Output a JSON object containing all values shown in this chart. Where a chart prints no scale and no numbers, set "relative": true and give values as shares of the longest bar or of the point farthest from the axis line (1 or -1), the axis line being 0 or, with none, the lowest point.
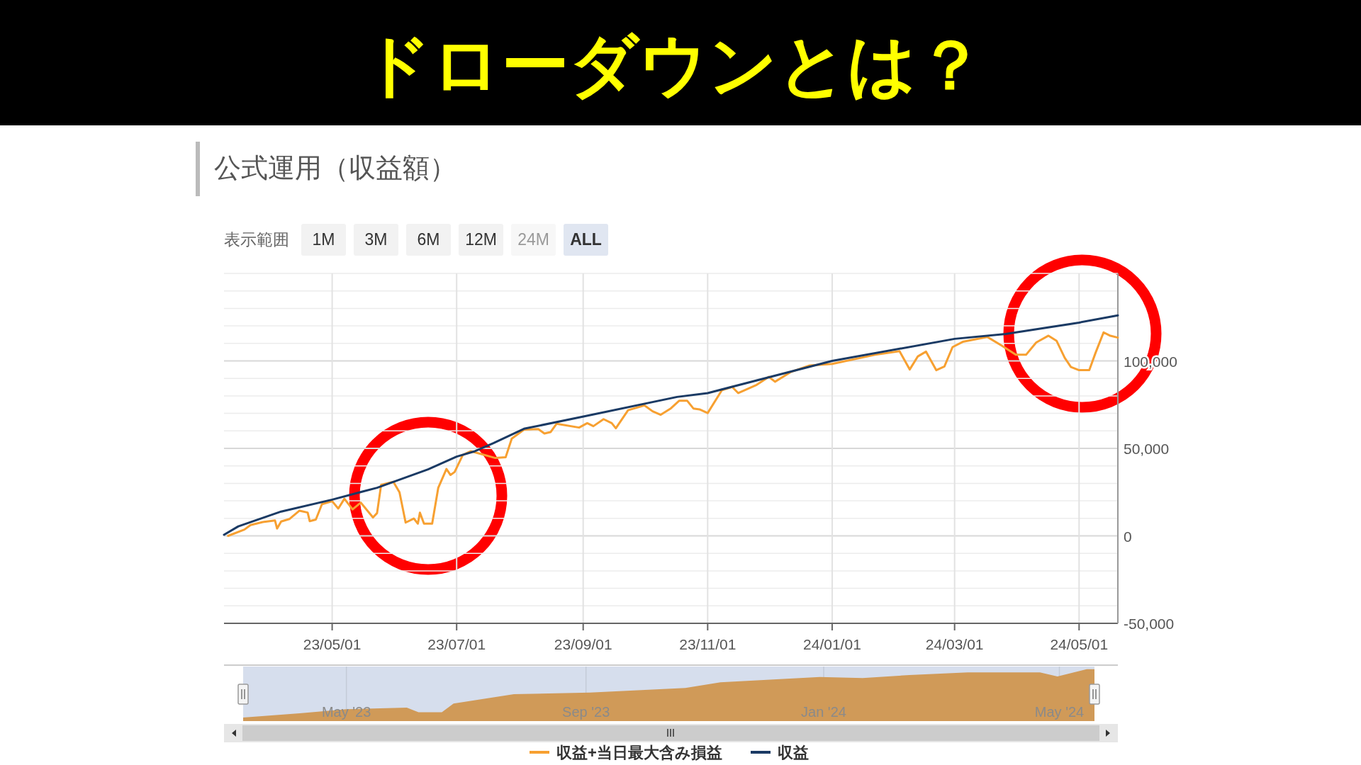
{
  "chart_data": [
    {
      "type": "line",
      "title": "ドローダウンとは？",
      "subtitle": "公式運用（収益額）",
      "annotations": [
        "表示範囲",
        "1M",
        "3M",
        "6M",
        "12M",
        "24M",
        "ALL"
      ],
      "xlim": [
        "2023-03-09",
        "2024-05-20"
      ],
      "xticks": [
        {
          "value": "2023-05-01",
          "label": "23/05/01"
        },
        {
          "value": "2023-07-01",
          "label": "23/07/01"
        },
        {
          "value": "2023-09-01",
          "label": "23/09/01"
        },
        {
          "value": "2023-11-01",
          "label": "23/11/01"
        },
        {
          "value": "2024-01-01",
          "label": "24/01/01"
        },
        {
          "value": "2024-03-01",
          "label": "24/03/01"
        },
        {
          "value": "2024-05-01",
          "label": "24/05/01"
        }
      ],
      "ylim": [
        -50000,
        150000
      ],
      "yticks": [
        {
          "value": -50000,
          "label": "-50,000"
        },
        {
          "value": -40000,
          "label": null
        },
        {
          "value": -30000,
          "label": null
        },
        {
          "value": -20000,
          "label": null
        },
        {
          "value": -10000,
          "label": null
        },
        {
          "value": 0,
          "label": "0"
        },
        {
          "value": 10000,
          "label": null
        },
        {
          "value": 20000,
          "label": null
        },
        {
          "value": 30000,
          "label": null
        },
        {
          "value": 40000,
          "label": null
        },
        {
          "value": 50000,
          "label": "50,000"
        },
        {
          "value": 60000,
          "label": null
        },
        {
          "value": 70000,
          "label": null
        },
        {
          "value": 80000,
          "label": null
        },
        {
          "value": 90000,
          "label": null
        },
        {
          "value": 100000,
          "label": "100,000"
        },
        {
          "value": 110000,
          "label": null
        },
        {
          "value": 120000,
          "label": null
        },
        {
          "value": 130000,
          "label": null
        },
        {
          "value": 140000,
          "label": null
        },
        {
          "value": 150000,
          "label": null
        }
      ],
      "grid": true,
      "legend": "bottom",
      "line_style": "solid",
      "series": [
        {
          "name": "収益+当日最大含み損益",
          "color": "#f7a031",
          "x": [
            "2023-03-11",
            "2023-03-19",
            "2023-03-22",
            "2023-03-28",
            "2023-04-03",
            "2023-04-04",
            "2023-04-06",
            "2023-04-10",
            "2023-04-15",
            "2023-04-19",
            "2023-04-20",
            "2023-04-23",
            "2023-04-26",
            "2023-05-01",
            "2023-05-04",
            "2023-05-07",
            "2023-05-11",
            "2023-05-15",
            "2023-05-21",
            "2023-05-23",
            "2023-05-25",
            "2023-05-31",
            "2023-06-03",
            "2023-06-06",
            "2023-06-10",
            "2023-06-12",
            "2023-06-13",
            "2023-06-15",
            "2023-06-19",
            "2023-06-22",
            "2023-06-26",
            "2023-06-28",
            "2023-06-30",
            "2023-07-04",
            "2023-07-08",
            "2023-07-20",
            "2023-07-25",
            "2023-07-28",
            "2023-08-03",
            "2023-08-10",
            "2023-08-13",
            "2023-08-16",
            "2023-08-19",
            "2023-08-30",
            "2023-09-03",
            "2023-09-06",
            "2023-09-11",
            "2023-09-15",
            "2023-09-17",
            "2023-09-23",
            "2023-10-01",
            "2023-10-05",
            "2023-10-09",
            "2023-10-14",
            "2023-10-18",
            "2023-10-22",
            "2023-10-25",
            "2023-10-28",
            "2023-11-01",
            "2023-11-08",
            "2023-11-13",
            "2023-11-16",
            "2023-11-25",
            "2023-12-01",
            "2023-12-04",
            "2023-12-12",
            "2023-12-21",
            "2024-01-01",
            "2024-01-22",
            "2024-02-03",
            "2024-02-08",
            "2024-02-12",
            "2024-02-16",
            "2024-02-21",
            "2024-02-25",
            "2024-02-29",
            "2024-03-05",
            "2024-03-17",
            "2024-03-24",
            "2024-03-31",
            "2024-04-05",
            "2024-04-10",
            "2024-04-16",
            "2024-04-20",
            "2024-04-24",
            "2024-04-27",
            "2024-05-01",
            "2024-05-06",
            "2024-05-09",
            "2024-05-13",
            "2024-05-16",
            "2024-05-20"
          ],
          "values": [
            0,
            3600,
            6200,
            7900,
            8800,
            4200,
            8200,
            9600,
            14400,
            13300,
            8400,
            9300,
            18100,
            19800,
            15600,
            21200,
            15100,
            19000,
            10500,
            13000,
            29200,
            30900,
            24900,
            7600,
            9900,
            7000,
            13300,
            7000,
            7000,
            27500,
            38200,
            34800,
            36500,
            46200,
            48400,
            44500,
            44900,
            55600,
            60700,
            61000,
            58500,
            59300,
            64100,
            61900,
            64400,
            62700,
            66700,
            64400,
            61500,
            71800,
            74600,
            71200,
            69200,
            72900,
            77200,
            77200,
            72800,
            72300,
            70200,
            83300,
            85100,
            81600,
            86300,
            90900,
            88100,
            93800,
            97400,
            98300,
            103500,
            105600,
            95100,
            102600,
            105300,
            94700,
            96800,
            107900,
            110900,
            113700,
            108800,
            103500,
            103500,
            110500,
            114400,
            111400,
            101700,
            96500,
            94700,
            94700,
            104400,
            116300,
            114500,
            113300
          ]
        },
        {
          "name": "収益",
          "color": "#1a3a64",
          "x": [
            "2023-03-09",
            "2023-03-16",
            "2023-04-06",
            "2023-05-01",
            "2023-05-23",
            "2023-06-17",
            "2023-07-01",
            "2023-07-10",
            "2023-07-19",
            "2023-08-03",
            "2023-09-02",
            "2023-10-17",
            "2023-11-01",
            "2024-01-01",
            "2024-03-01",
            "2024-03-26",
            "2024-05-01",
            "2024-05-20"
          ],
          "values": [
            600,
            5400,
            13900,
            20700,
            27500,
            38000,
            45300,
            48400,
            53000,
            61200,
            68400,
            79400,
            81600,
            100000,
            112600,
            115400,
            121900,
            126000
          ]
        }
      ]
    },
    {
      "type": "area",
      "relative": true,
      "grid": "x",
      "color": "#d09a58",
      "tick_labels": "x",
      "xlim": [
        "2023-03-09",
        "2024-05-19"
      ],
      "xticks": [
        {
          "value": "2023-05-01",
          "label": "May '23"
        },
        {
          "value": "2023-09-01",
          "label": "Sep '23"
        },
        {
          "value": "2024-01-01",
          "label": "Jan '24"
        },
        {
          "value": "2024-05-01",
          "label": "May '24"
        }
      ],
      "x": [
        "2023-03-09",
        "2023-04-07",
        "2023-05-01",
        "2023-06-01",
        "2023-06-07",
        "2023-06-19",
        "2023-06-25",
        "2023-07-26",
        "2023-09-03",
        "2023-10-22",
        "2023-11-09",
        "2023-12-30",
        "2024-01-21",
        "2024-02-14",
        "2024-03-15",
        "2024-04-21",
        "2024-04-30",
        "2024-05-15",
        "2024-05-19"
      ],
      "values": [
        0.07,
        0.15,
        0.23,
        0.26,
        0.17,
        0.17,
        0.34,
        0.52,
        0.55,
        0.64,
        0.75,
        0.85,
        0.83,
        0.89,
        0.94,
        0.94,
        0.86,
        1,
        1
      ]
    }
  ]
}
